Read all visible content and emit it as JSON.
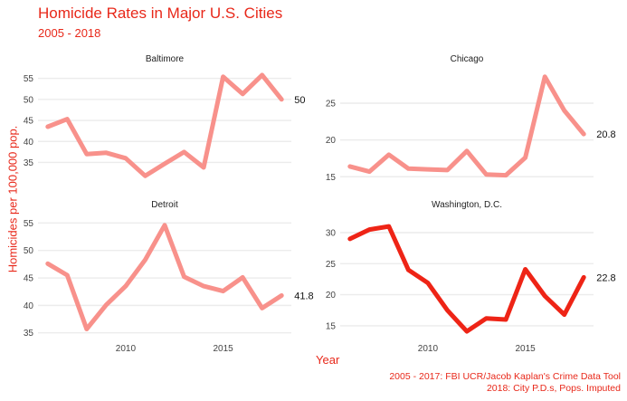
{
  "chart_data": {
    "type": "line",
    "title": "Homicide Rates in Major U.S. Cities",
    "subtitle": "2005 - 2018",
    "xlabel": "Year",
    "ylabel": "Homicides per 100,000 pop.",
    "caption": [
      "2005 - 2017: FBI UCR/Jacob Kaplan's Crime Data Tool",
      "2018: City P.D.s, Pops. Imputed"
    ],
    "grid": "horizontal",
    "xlim": [
      2005.5,
      2018.5
    ],
    "panels": [
      {
        "name": "Baltimore",
        "color": "#f8918b",
        "ylim": [
          29.5,
          57.5
        ],
        "yticks": [
          35,
          40,
          45,
          50,
          55
        ],
        "xticks": [],
        "end_label": "50",
        "x": [
          2006,
          2007,
          2008,
          2009,
          2010,
          2011,
          2012,
          2013,
          2014,
          2015,
          2016,
          2017,
          2018
        ],
        "y": [
          43.5,
          45.3,
          37.0,
          37.3,
          36.0,
          31.8,
          34.7,
          37.5,
          33.8,
          55.4,
          51.3,
          55.8,
          50.0
        ]
      },
      {
        "name": "Chicago",
        "color": "#f8918b",
        "ylim": [
          13.8,
          29.8
        ],
        "yticks": [
          15,
          20,
          25
        ],
        "xticks": [],
        "end_label": "20.8",
        "x": [
          2006,
          2007,
          2008,
          2009,
          2010,
          2011,
          2012,
          2013,
          2014,
          2015,
          2016,
          2017,
          2018
        ],
        "y": [
          16.4,
          15.7,
          18.0,
          16.1,
          16.0,
          15.9,
          18.5,
          15.3,
          15.2,
          17.6,
          28.6,
          24.0,
          20.8
        ]
      },
      {
        "name": "Detroit",
        "color": "#f8918b",
        "ylim": [
          33.8,
          57.2
        ],
        "yticks": [
          35,
          40,
          45,
          50,
          55
        ],
        "xticks": [
          2010,
          2015
        ],
        "end_label": "41.8",
        "x": [
          2006,
          2007,
          2008,
          2009,
          2010,
          2011,
          2012,
          2013,
          2014,
          2015,
          2016,
          2017,
          2018
        ],
        "y": [
          47.6,
          45.5,
          35.7,
          40.1,
          43.5,
          48.3,
          54.6,
          45.2,
          43.5,
          42.6,
          45.1,
          39.5,
          41.8
        ]
      },
      {
        "name": "Washington, D.C.",
        "color": "#ee2416",
        "ylim": [
          12.8,
          33.5
        ],
        "yticks": [
          15,
          20,
          25,
          30
        ],
        "xticks": [
          2010,
          2015
        ],
        "end_label": "22.8",
        "x": [
          2006,
          2007,
          2008,
          2009,
          2010,
          2011,
          2012,
          2013,
          2014,
          2015,
          2016,
          2017,
          2018
        ],
        "y": [
          29.0,
          30.5,
          31.0,
          24.0,
          21.9,
          17.5,
          14.1,
          16.2,
          16.0,
          24.1,
          19.8,
          16.8,
          22.8
        ]
      }
    ]
  }
}
